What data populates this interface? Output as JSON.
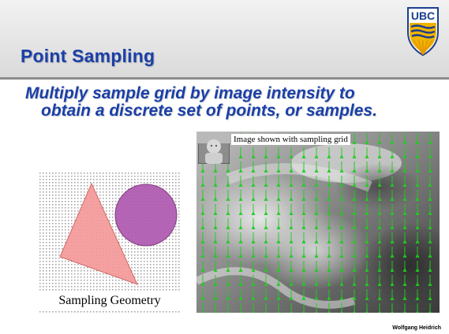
{
  "slide": {
    "title": "Point Sampling",
    "subtitle_line1": "Multiply sample grid by image intensity to",
    "subtitle_line2": "obtain a discrete set of points, or samples.",
    "logo_text": "UBC",
    "author": "Wolfgang Heidrich"
  },
  "figures": {
    "geometry_label": "Sampling Geometry",
    "image_caption": "Image shown with sampling grid"
  },
  "colors": {
    "title": "#1a3fa8",
    "triangle_fill": "#f59a9a",
    "circle_fill": "#b05ab0",
    "sample_arrow": "#22cc22",
    "logo_blue": "#1a3f8c",
    "logo_gold": "#f0b400"
  },
  "icons": {
    "logo": "ubc-crest-icon"
  }
}
